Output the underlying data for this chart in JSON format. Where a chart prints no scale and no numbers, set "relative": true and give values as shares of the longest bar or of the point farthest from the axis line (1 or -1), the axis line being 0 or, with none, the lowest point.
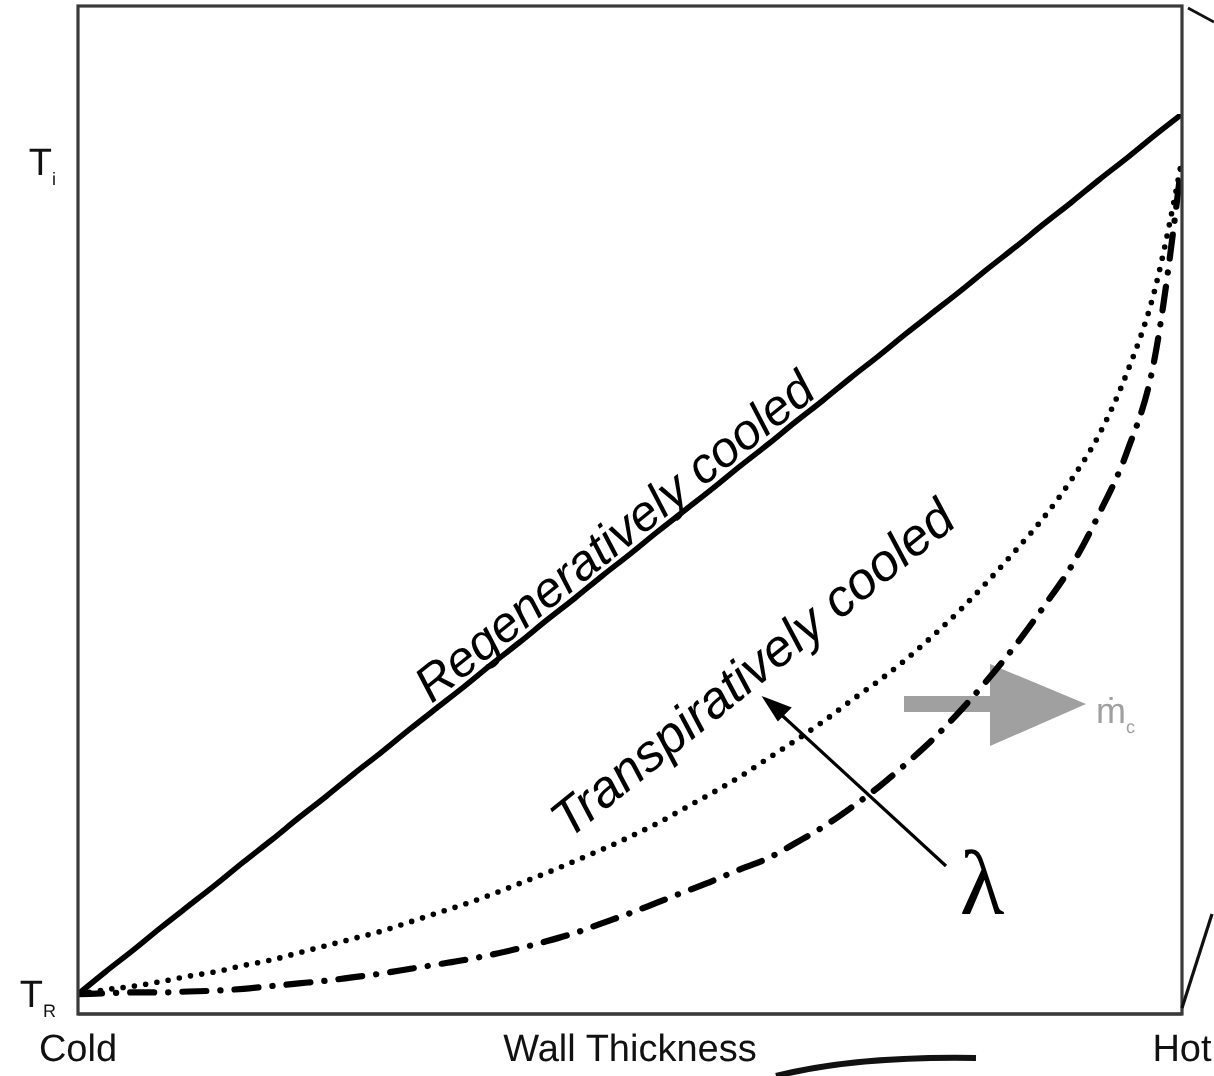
{
  "chart_data": {
    "type": "line",
    "relative": true,
    "xlabel": "Wall Thickness",
    "categories": [
      "Cold",
      null,
      null,
      null,
      null,
      null,
      null,
      null,
      null,
      null,
      null,
      null,
      null,
      null,
      null,
      null,
      null,
      null,
      null,
      null,
      null,
      null,
      null,
      null,
      null,
      null,
      null,
      null,
      null,
      null,
      null,
      null,
      null,
      null,
      null,
      null,
      null,
      null,
      null,
      null,
      "Hot"
    ],
    "marker": "none",
    "series": [
      {
        "name": "Regeneratively cooled",
        "color": "#000000",
        "line_style": "solid",
        "values": [
          0.022,
          0.047,
          0.071,
          0.096,
          0.12,
          0.144,
          0.169,
          0.193,
          0.218,
          0.242,
          0.267,
          0.291,
          0.316,
          0.34,
          0.364,
          0.389,
          0.413,
          0.438,
          0.462,
          0.487,
          0.511,
          0.536,
          0.56,
          0.584,
          0.609,
          0.633,
          0.658,
          0.682,
          0.707,
          0.731,
          0.756,
          0.78,
          0.804,
          0.829,
          0.853,
          0.878,
          0.902,
          0.927,
          0.951,
          0.976,
          1
        ]
      },
      {
        "name": "Transpiratively cooled",
        "color": "#000000",
        "line_style": "dotted",
        "values": [
          0.022,
          0.027,
          0.031,
          0.036,
          0.042,
          0.047,
          0.054,
          0.06,
          0.068,
          0.076,
          0.084,
          0.092,
          0.102,
          0.112,
          0.122,
          0.133,
          0.145,
          0.157,
          0.17,
          0.183,
          0.197,
          0.212,
          0.229,
          0.246,
          0.264,
          0.284,
          0.304,
          0.325,
          0.348,
          0.37,
          0.394,
          0.421,
          0.45,
          0.482,
          0.516,
          0.552,
          0.594,
          0.644,
          0.712,
          0.803,
          0.949
        ]
      },
      {
        "color": "#000000",
        "line_style": "dashdot",
        "values": [
          0.022,
          0.023,
          0.024,
          0.024,
          0.025,
          0.026,
          0.028,
          0.031,
          0.034,
          0.037,
          0.041,
          0.045,
          0.05,
          0.055,
          0.06,
          0.066,
          0.073,
          0.081,
          0.09,
          0.101,
          0.112,
          0.124,
          0.136,
          0.148,
          0.161,
          0.173,
          0.19,
          0.208,
          0.229,
          0.252,
          0.278,
          0.306,
          0.338,
          0.373,
          0.411,
          0.453,
          0.498,
          0.556,
          0.624,
          0.727,
          0.949
        ]
      }
    ],
    "annotations": [
      "T$_{i}$",
      "T$_{R}$",
      "λ",
      "ṁ$_{c}$"
    ]
  }
}
